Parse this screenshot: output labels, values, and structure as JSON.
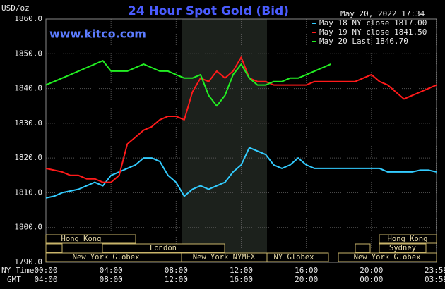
{
  "chart_data": {
    "type": "line",
    "title": "24 Hour Spot Gold (Bid)",
    "site": "www.kitco.com",
    "timestamp": "May 20, 2022 17:34",
    "y_unit": "USD/oz",
    "x_row_labels": [
      "NY Time",
      "GMT"
    ],
    "xlim": [
      0,
      24
    ],
    "ylim": [
      1790,
      1860
    ],
    "yticks": [
      {
        "value": 1790,
        "label": "1790.0"
      },
      {
        "value": 1800,
        "label": "1800.0"
      },
      {
        "value": 1810,
        "label": "1810.0"
      },
      {
        "value": 1820,
        "label": "1820.0"
      },
      {
        "value": 1830,
        "label": "1830.0"
      },
      {
        "value": 1840,
        "label": "1840.0"
      },
      {
        "value": 1850,
        "label": "1850.0"
      },
      {
        "value": 1860,
        "label": "1860.0"
      }
    ],
    "xticks": [
      {
        "value": 0,
        "label": "00:00"
      },
      {
        "value": 4,
        "label": "04:00"
      },
      {
        "value": 8,
        "label": "08:00"
      },
      {
        "value": 12,
        "label": "12:00"
      },
      {
        "value": 16,
        "label": "16:00"
      },
      {
        "value": 20,
        "label": "20:00"
      },
      {
        "value": 23.98,
        "label": "23:59"
      }
    ],
    "x2_tick_labels": [
      "04:00",
      "08:00",
      "12:00",
      "16:00",
      "20:00",
      "00:00",
      "03:59"
    ],
    "grid": true,
    "legend": "upper right",
    "sessions": [
      "Hong Kong",
      "London",
      "New York Globex",
      "New York NYMEX",
      "NY Globex",
      "Hong Kong",
      "Sydney",
      "New York Globex"
    ],
    "x": [
      0,
      0.5,
      1,
      1.5,
      2,
      2.5,
      3,
      3.5,
      4,
      4.5,
      5,
      5.5,
      6,
      6.5,
      7,
      7.5,
      8,
      8.5,
      9,
      9.5,
      10,
      10.5,
      11,
      11.5,
      12,
      12.5,
      13,
      13.5,
      14,
      14.5,
      15,
      15.5,
      16,
      16.5,
      17,
      17.5,
      18,
      18.5,
      19,
      19.5,
      20,
      20.5,
      21,
      21.5,
      22,
      22.5,
      23,
      23.5,
      24
    ],
    "series": [
      {
        "name": "May 18 NY close 1817.00",
        "color": "#33ccff",
        "values": [
          1808.5,
          1809,
          1810,
          1810.5,
          1811,
          1812,
          1813,
          1812,
          1815,
          1816,
          1817,
          1818,
          1820,
          1820,
          1819,
          1815,
          1813,
          1809,
          1811,
          1812,
          1811,
          1812,
          1813,
          1816,
          1818,
          1823,
          1822,
          1821,
          1818,
          1817,
          1818,
          1820,
          1818,
          1817,
          1817,
          1817,
          1817,
          1817,
          1817,
          1817,
          1817,
          1817,
          1816,
          1816,
          1816,
          1816,
          1816.5,
          1816.5,
          1816
        ]
      },
      {
        "name": "May 19 NY close 1841.50",
        "color": "#ff1a1a",
        "values": [
          1817,
          1816.5,
          1816,
          1815,
          1815,
          1814,
          1814,
          1813,
          1813,
          1815,
          1824,
          1826,
          1828,
          1829,
          1831,
          1832,
          1832,
          1831,
          1839,
          1843,
          1842,
          1845,
          1843,
          1845,
          1849,
          1843,
          1842,
          1842,
          1841,
          1841,
          1841,
          1841,
          1841,
          1842,
          1842,
          1842,
          1842,
          1842,
          1842,
          1843,
          1844,
          1842,
          1841,
          1839,
          1837,
          1838,
          1839,
          1840,
          1841
        ]
      },
      {
        "name": "May 20 Last 1846.70",
        "color": "#22ee22",
        "values": [
          1841,
          1842,
          1843,
          1844,
          1845,
          1846,
          1847,
          1848,
          1845,
          1845,
          1845,
          1846,
          1847,
          1846,
          1845,
          1845,
          1844,
          1843,
          1843,
          1844,
          1838,
          1835,
          1838,
          1844,
          1847,
          1843,
          1841,
          1841,
          1842,
          1842,
          1843,
          1843,
          1844,
          1845,
          1846,
          1847,
          null,
          null,
          null,
          null,
          null,
          null,
          null,
          null,
          null,
          null,
          null,
          null,
          null
        ]
      }
    ]
  }
}
